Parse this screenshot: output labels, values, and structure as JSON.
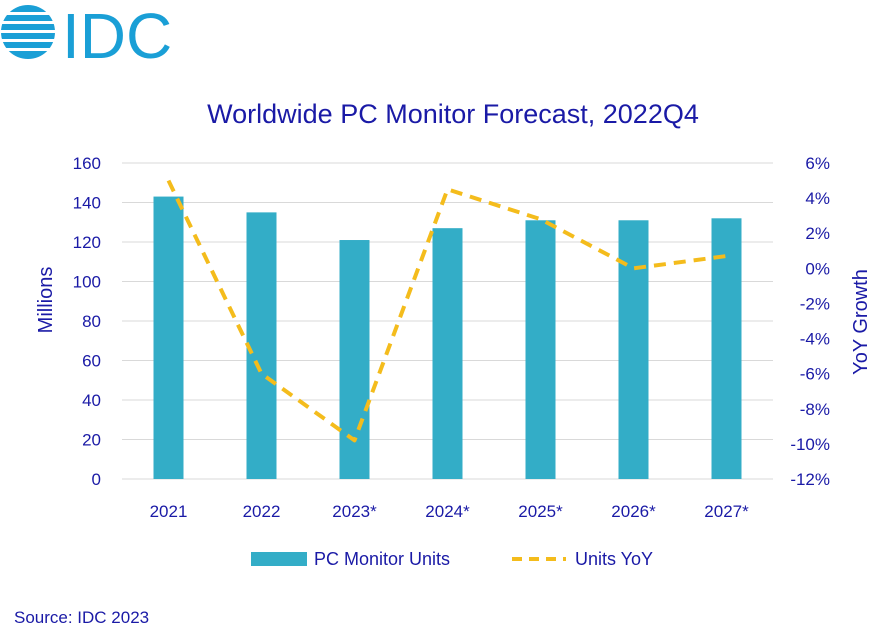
{
  "logo": {
    "text": "IDC"
  },
  "source": "Source: IDC 2023",
  "colors": {
    "bar": "#33adc7",
    "line": "#f4bc1c",
    "text": "#1a1aa6",
    "grid": "#d9d9d9",
    "logo": "#1a9fd6"
  },
  "chart_data": {
    "type": "bar",
    "title": "Worldwide PC Monitor Forecast, 2022Q4",
    "categories": [
      "2021",
      "2022",
      "2023*",
      "2024*",
      "2025*",
      "2026*",
      "2027*"
    ],
    "series": [
      {
        "name": "PC Monitor Units",
        "type": "bar",
        "axis": "left",
        "values": [
          143,
          135,
          121,
          127,
          131,
          131,
          132
        ]
      },
      {
        "name": "Units YoY",
        "type": "line",
        "axis": "right",
        "style": "dashed",
        "values": [
          5.0,
          -6.0,
          -9.8,
          4.5,
          2.8,
          0.0,
          0.7
        ]
      }
    ],
    "ylabel": "Millions",
    "ylim": [
      0,
      160
    ],
    "yticks": [
      "0",
      "20",
      "40",
      "60",
      "80",
      "100",
      "120",
      "140",
      "160"
    ],
    "y2label": "YoY Growth",
    "y2lim": [
      -12,
      6
    ],
    "y2ticks": [
      "-12%",
      "-10%",
      "-8%",
      "-6%",
      "-4%",
      "-2%",
      "0%",
      "2%",
      "4%",
      "6%"
    ],
    "grid": true,
    "legend": "bottom-center"
  }
}
